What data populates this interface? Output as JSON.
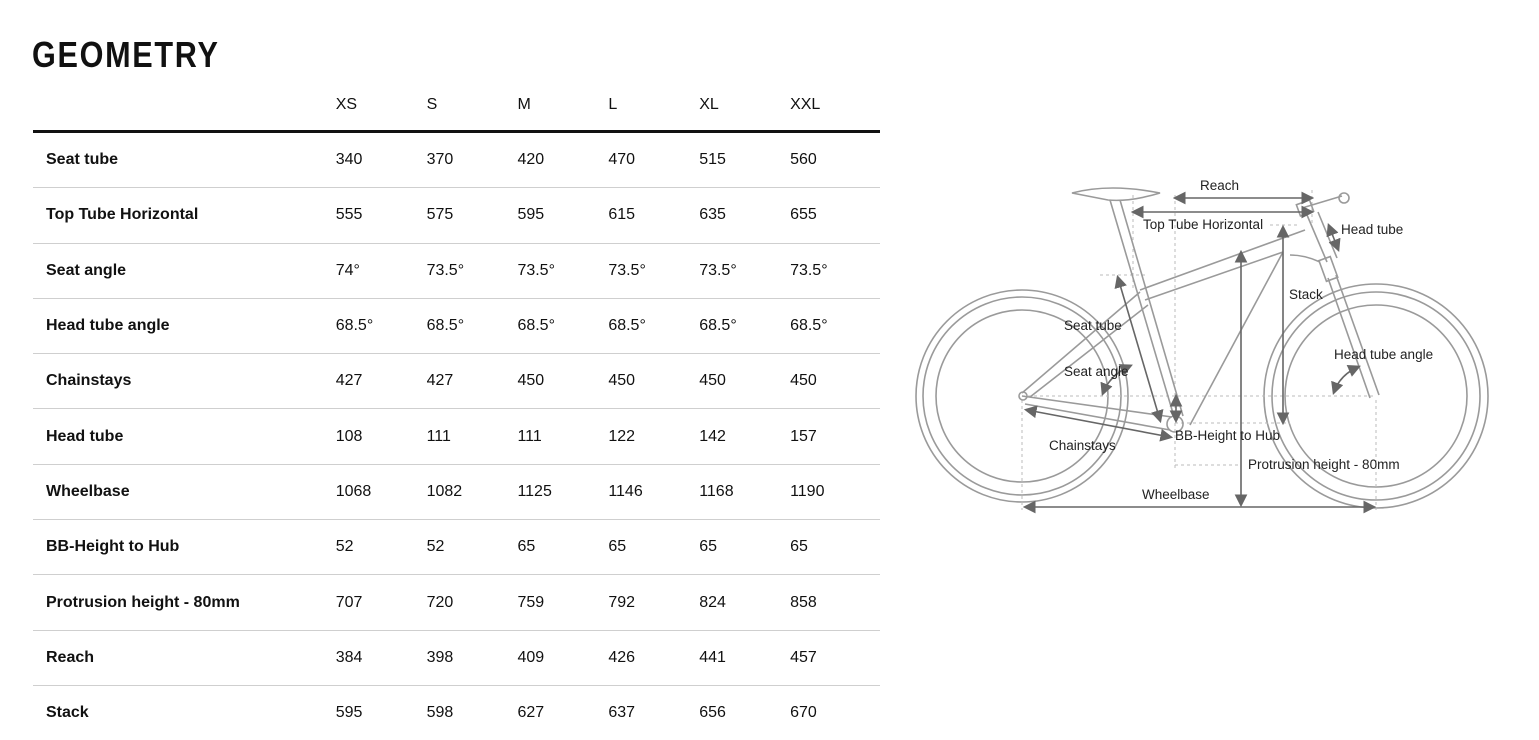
{
  "title": "GEOMETRY",
  "table": {
    "columns": [
      "XS",
      "S",
      "M",
      "L",
      "XL",
      "XXL"
    ],
    "rows": [
      {
        "label": "Seat tube",
        "values": [
          "340",
          "370",
          "420",
          "470",
          "515",
          "560"
        ]
      },
      {
        "label": "Top Tube Horizontal",
        "values": [
          "555",
          "575",
          "595",
          "615",
          "635",
          "655"
        ]
      },
      {
        "label": "Seat angle",
        "values": [
          "74°",
          "73.5°",
          "73.5°",
          "73.5°",
          "73.5°",
          "73.5°"
        ]
      },
      {
        "label": "Head tube angle",
        "values": [
          "68.5°",
          "68.5°",
          "68.5°",
          "68.5°",
          "68.5°",
          "68.5°"
        ]
      },
      {
        "label": "Chainstays",
        "values": [
          "427",
          "427",
          "450",
          "450",
          "450",
          "450"
        ]
      },
      {
        "label": "Head tube",
        "values": [
          "108",
          "111",
          "111",
          "122",
          "142",
          "157"
        ]
      },
      {
        "label": "Wheelbase",
        "values": [
          "1068",
          "1082",
          "1125",
          "1146",
          "1168",
          "1190"
        ]
      },
      {
        "label": "BB-Height to Hub",
        "values": [
          "52",
          "52",
          "65",
          "65",
          "65",
          "65"
        ]
      },
      {
        "label": "Protrusion height - 80mm",
        "values": [
          "707",
          "720",
          "759",
          "792",
          "824",
          "858"
        ]
      },
      {
        "label": "Reach",
        "values": [
          "384",
          "398",
          "409",
          "426",
          "441",
          "457"
        ]
      },
      {
        "label": "Stack",
        "values": [
          "595",
          "598",
          "627",
          "637",
          "656",
          "670"
        ]
      }
    ]
  },
  "diagram": {
    "labels": {
      "reach": "Reach",
      "top_tube": "Top Tube Horizontal",
      "head_tube": "Head tube",
      "stack": "Stack",
      "seat_tube": "Seat tube",
      "head_tube_angle": "Head tube angle",
      "seat_angle": "Seat angle",
      "bb_height": "BB-Height to Hub",
      "chainstays": "Chainstays",
      "protrusion": "Protrusion height - 80mm",
      "wheelbase": "Wheelbase"
    }
  }
}
